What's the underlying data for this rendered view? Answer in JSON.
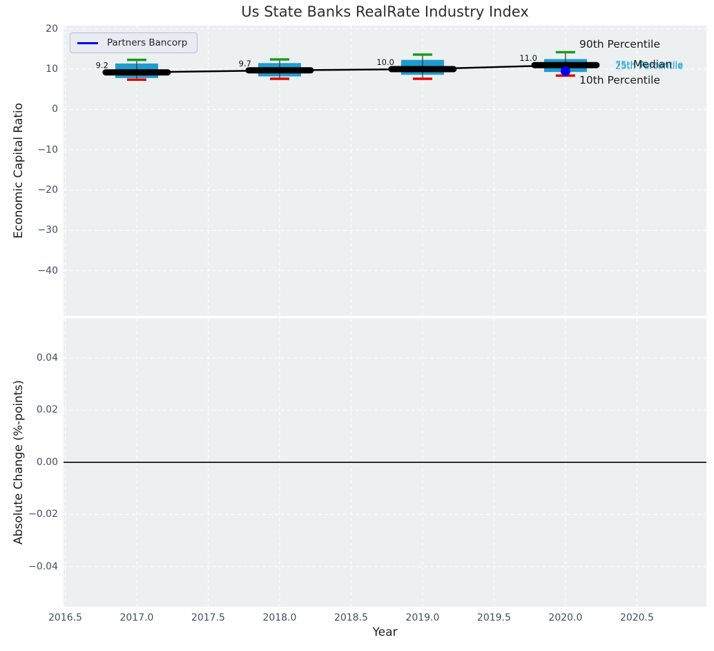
{
  "chart_data": {
    "type": "boxplot-line-combo",
    "title": "Us State Banks RealRate Industry Index",
    "xlabel": "Year",
    "legend": [
      "Partners Bancorp"
    ],
    "xlim": [
      2016.488,
      2020.986
    ],
    "xticks": [
      {
        "v": 2016.5,
        "label": "2016.5"
      },
      {
        "v": 2017.0,
        "label": "2017.0"
      },
      {
        "v": 2017.5,
        "label": "2017.5"
      },
      {
        "v": 2018.0,
        "label": "2018.0"
      },
      {
        "v": 2018.5,
        "label": "2018.5"
      },
      {
        "v": 2019.0,
        "label": "2019.0"
      },
      {
        "v": 2019.5,
        "label": "2019.5"
      },
      {
        "v": 2020.0,
        "label": "2020.0"
      },
      {
        "v": 2020.5,
        "label": "2020.5"
      }
    ],
    "panels": [
      {
        "ylabel": "Economic Capital Ratio",
        "ylim": [
          -51.19,
          20.81
        ],
        "yticks": [
          {
            "v": 20,
            "label": "20"
          },
          {
            "v": 10,
            "label": "10"
          },
          {
            "v": 0,
            "label": "0"
          },
          {
            "v": -10,
            "label": "−10"
          },
          {
            "v": -20,
            "label": "−20"
          },
          {
            "v": -30,
            "label": "−30"
          },
          {
            "v": -40,
            "label": "−40"
          }
        ],
        "boxes": [
          {
            "year": 2017,
            "p10": 7.4,
            "q1": 7.8,
            "median": 9.2,
            "q3": 11.4,
            "p90": 12.3,
            "label": "9.2"
          },
          {
            "year": 2018,
            "p10": 7.6,
            "q1": 8.2,
            "median": 9.7,
            "q3": 11.5,
            "p90": 12.4,
            "label": "9.7"
          },
          {
            "year": 2019,
            "p10": 7.6,
            "q1": 8.6,
            "median": 10.0,
            "q3": 12.3,
            "p90": 13.6,
            "label": "10.0"
          },
          {
            "year": 2020,
            "p10": 8.4,
            "q1": 9.3,
            "median": 11.0,
            "q3": 12.5,
            "p90": 14.2,
            "label": "11.0"
          }
        ],
        "median_series": {
          "x": [
            2017,
            2018,
            2019,
            2020
          ],
          "y": [
            9.2,
            9.7,
            10.0,
            11.0
          ]
        },
        "company_point": {
          "x": 2020,
          "y": 9.5
        },
        "annotations": {
          "p90": "90th Percentile",
          "p75": "75th Percentile",
          "median": "Median",
          "p25": "25th Percentile",
          "p10": "10th Percentile"
        }
      },
      {
        "ylabel": "Absolute Change (%-points)",
        "ylim": [
          -0.0554,
          0.0551
        ],
        "yticks": [
          {
            "v": 0.04,
            "label": "0.04"
          },
          {
            "v": 0.02,
            "label": "0.02"
          },
          {
            "v": 0.0,
            "label": "0.00"
          },
          {
            "v": -0.02,
            "label": "−0.02"
          },
          {
            "v": -0.04,
            "label": "−0.04"
          }
        ],
        "zero_line": true
      }
    ]
  },
  "colors": {
    "plot_bg": "#ecf0f1",
    "grid": "#ffffff",
    "box_fill": "#1f9cce",
    "whisker_stem": "#3a3a3a",
    "cap_top": "#189c18",
    "cap_bottom": "#e00000",
    "median_line": "#000000",
    "company": "#0000ee",
    "cyan_text": "#2aa4d6",
    "tick_text": "#3e4d63",
    "label_text": "#1a1a1a",
    "zero_line": "#000000"
  }
}
